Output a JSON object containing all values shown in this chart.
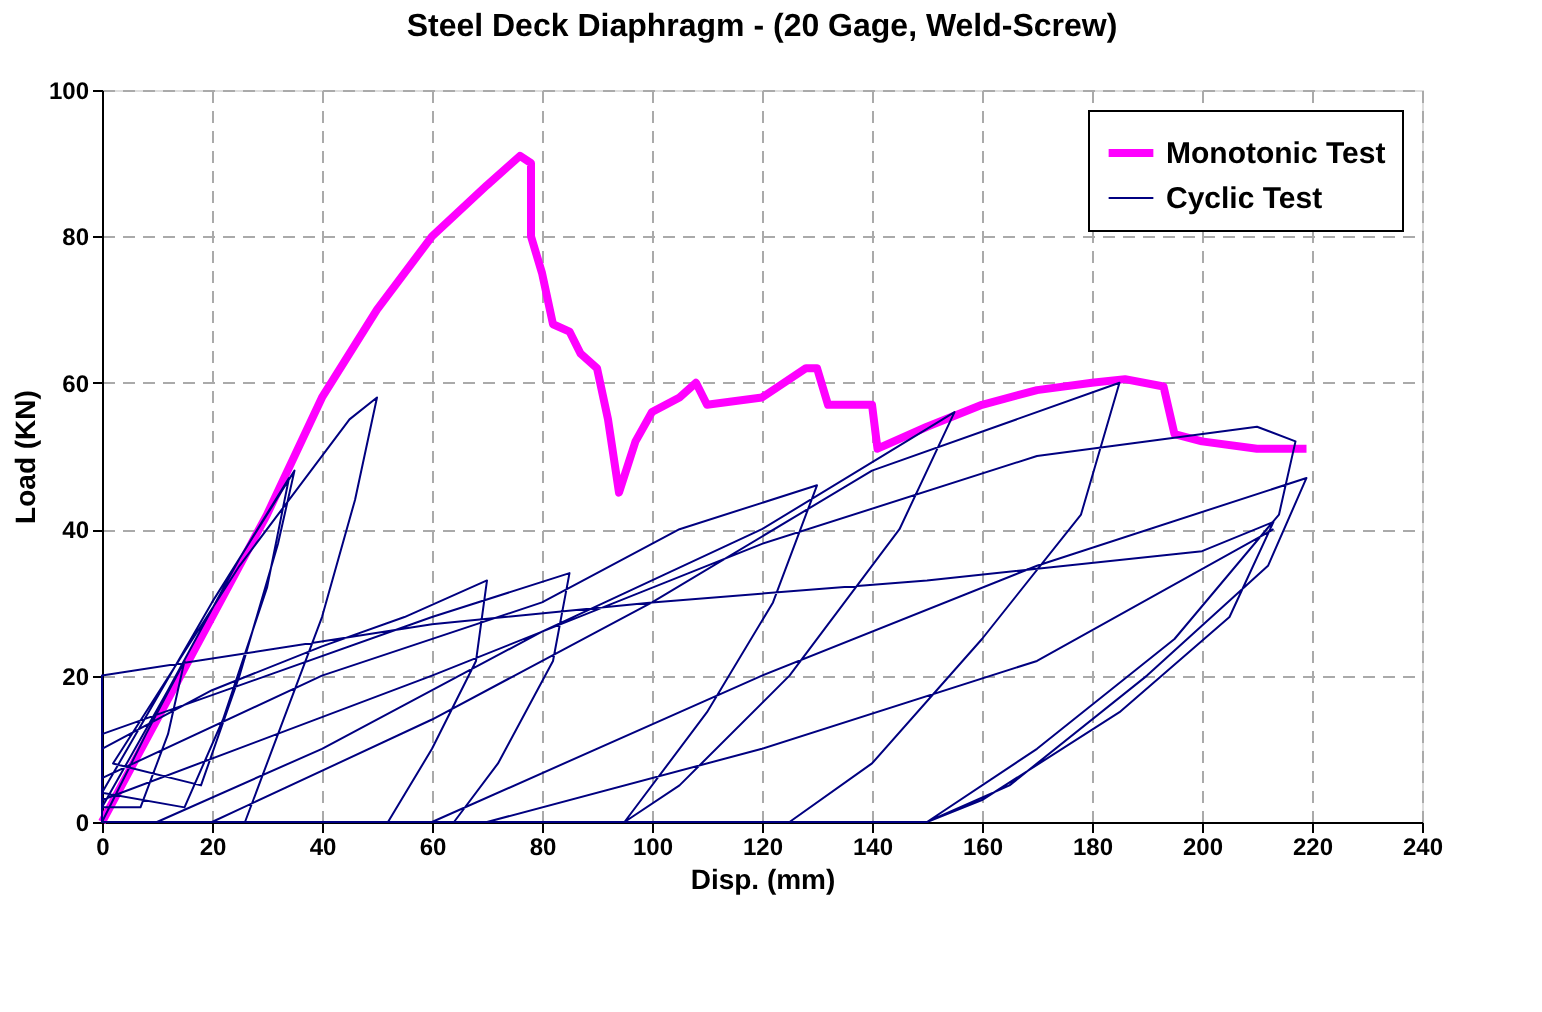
{
  "chart_data": {
    "type": "line",
    "title": "Steel Deck Diaphragm - (20 Gage, Weld-Screw)",
    "xlabel": "Disp. (mm)",
    "ylabel": "Load (KN)",
    "xlim": [
      0,
      240
    ],
    "xticks": [
      0,
      20,
      40,
      60,
      80,
      100,
      120,
      140,
      160,
      180,
      200,
      220,
      240
    ],
    "ylim": [
      0,
      100
    ],
    "yticks": [
      0,
      20,
      40,
      60,
      80,
      100
    ],
    "grid": true,
    "legend": "top right",
    "line_style": "solid",
    "marker": "none",
    "series": [
      {
        "name": "Monotonic Test",
        "color": "#ff00ff",
        "x": [
          0,
          10,
          20,
          30,
          40,
          50,
          60,
          70,
          76,
          78,
          78,
          80,
          82,
          85,
          87,
          90,
          92,
          94,
          97,
          100,
          105,
          108,
          110,
          120,
          128,
          130,
          132,
          140,
          141,
          150,
          160,
          170,
          180,
          186,
          193,
          195,
          200,
          210,
          219
        ],
        "values": [
          0,
          14,
          28,
          42,
          58,
          70,
          80,
          87,
          91,
          90,
          80,
          75,
          68,
          67,
          64,
          62,
          55,
          45,
          52,
          56,
          58,
          60,
          57,
          58,
          62,
          62,
          57,
          57,
          51,
          54,
          57,
          59,
          60,
          60.5,
          59.5,
          53,
          52,
          51,
          51
        ]
      },
      {
        "name": "Cyclic Test",
        "color": "#000080",
        "x": [
          0,
          8,
          15,
          12,
          7,
          0,
          12,
          25,
          34,
          30,
          22,
          15,
          0,
          20,
          35,
          32,
          25,
          18,
          2,
          25,
          45,
          50,
          46,
          40,
          32,
          26,
          0,
          0,
          20,
          40,
          55,
          70,
          68,
          60,
          52,
          0,
          0,
          30,
          60,
          85,
          82,
          72,
          64,
          0,
          0,
          40,
          80,
          105,
          130,
          122,
          110,
          95,
          10,
          40,
          80,
          120,
          155,
          145,
          125,
          105,
          95,
          20,
          60,
          100,
          140,
          185,
          178,
          160,
          140,
          125,
          0,
          0,
          60,
          120,
          170,
          210,
          217,
          214,
          195,
          170,
          150,
          60,
          120,
          170,
          219,
          212,
          190,
          165,
          150,
          0,
          0,
          60,
          100,
          150,
          200,
          213,
          205,
          185,
          160,
          150,
          70,
          120,
          170,
          213
        ],
        "values": [
          0,
          12,
          22,
          12,
          2,
          2,
          18,
          36,
          47,
          32,
          14,
          2,
          4,
          30,
          48,
          38,
          20,
          5,
          8,
          35,
          55,
          58,
          44,
          28,
          12,
          0,
          0,
          10,
          18,
          24,
          28,
          33,
          22,
          10,
          0,
          0,
          12,
          20,
          28,
          34,
          22,
          8,
          0,
          0,
          6,
          20,
          30,
          40,
          46,
          30,
          15,
          0,
          0,
          10,
          26,
          40,
          56,
          40,
          20,
          5,
          0,
          0,
          14,
          30,
          48,
          60,
          42,
          25,
          8,
          0,
          0,
          3,
          20,
          38,
          50,
          54,
          52,
          42,
          25,
          10,
          0,
          0,
          20,
          35,
          47,
          35,
          20,
          5,
          0,
          0,
          20,
          27,
          30,
          33,
          37,
          41,
          28,
          15,
          3,
          0,
          0,
          10,
          22,
          40
        ]
      }
    ]
  }
}
